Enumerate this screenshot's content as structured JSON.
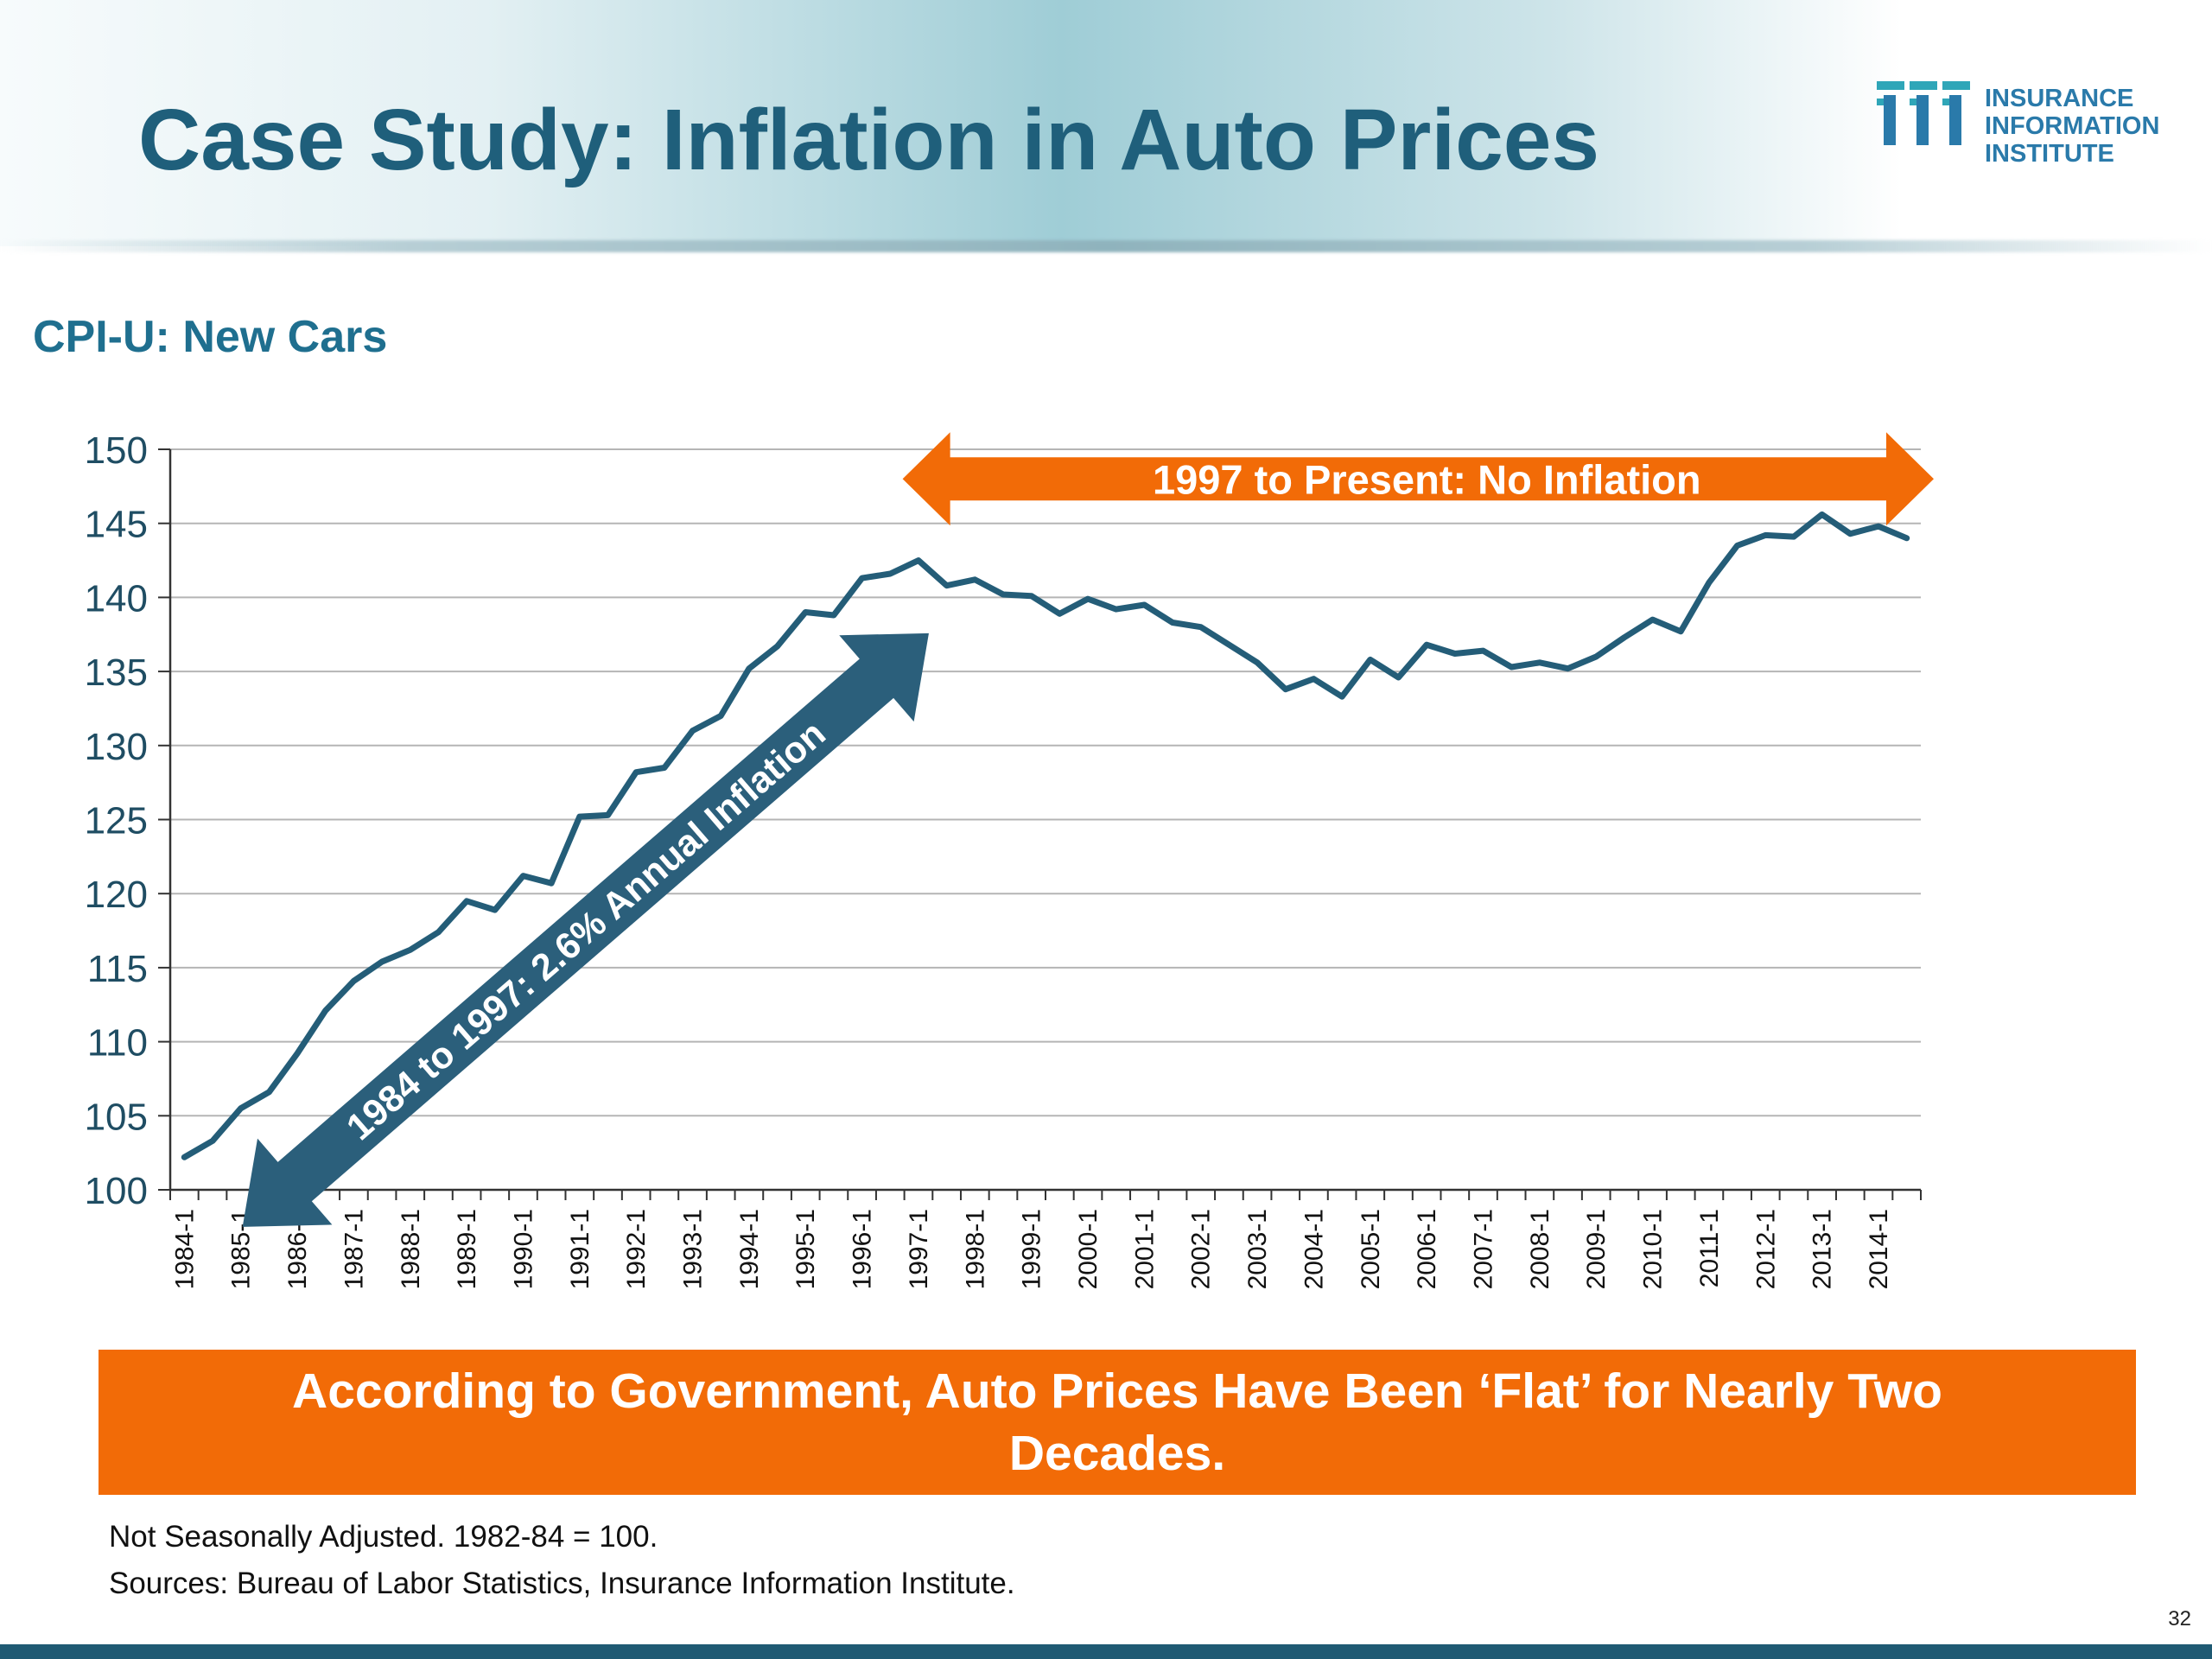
{
  "slide": {
    "title": "Case Study: Inflation in Auto Prices",
    "page_number": "32"
  },
  "logo": {
    "line1": "INSURANCE",
    "line2": "INFORMATION",
    "line3": "INSTITUTE",
    "colors": {
      "teal": "#2fa6b8",
      "blue": "#2a7aaa"
    }
  },
  "callout": {
    "line1": "According to Government, Auto Prices Have Been ‘Flat’ for Nearly Two",
    "line2": "Decades."
  },
  "footnotes": [
    "Not Seasonally Adjusted. 1982-84 = 100.",
    "Sources: Bureau of Labor Statistics, Insurance Information Institute."
  ],
  "colors": {
    "title": "#1f5f7b",
    "line": "#245d78",
    "orange": "#f26b07",
    "dark_arrow": "#2b5f7b"
  },
  "chart_data": {
    "type": "line",
    "title": "CPI-U: New Cars",
    "xlabel": "",
    "ylabel": "",
    "ylim": [
      100,
      150
    ],
    "yticks": [
      100,
      105,
      110,
      115,
      120,
      125,
      130,
      135,
      140,
      145,
      150
    ],
    "grid": true,
    "x_tick_labels": [
      "1984-1",
      "1985-1",
      "1986-1",
      "1987-1",
      "1988-1",
      "1989-1",
      "1990-1",
      "1991-1",
      "1992-1",
      "1993-1",
      "1994-1",
      "1995-1",
      "1996-1",
      "1997-1",
      "1998-1",
      "1999-1",
      "2000-1",
      "2001-1",
      "2002-1",
      "2003-1",
      "2004-1",
      "2005-1",
      "2006-1",
      "2007-1",
      "2008-1",
      "2009-1",
      "2010-1",
      "2011-1",
      "2012-1",
      "2013-1",
      "2014-1"
    ],
    "x": [
      "1984-1",
      "1984-2",
      "1985-1",
      "1985-2",
      "1986-1",
      "1986-2",
      "1987-1",
      "1987-2",
      "1988-1",
      "1988-2",
      "1989-1",
      "1989-2",
      "1990-1",
      "1990-2",
      "1991-1",
      "1991-2",
      "1992-1",
      "1992-2",
      "1993-1",
      "1993-2",
      "1994-1",
      "1994-2",
      "1995-1",
      "1995-2",
      "1996-1",
      "1996-2",
      "1997-1",
      "1997-2",
      "1998-1",
      "1998-2",
      "1999-1",
      "1999-2",
      "2000-1",
      "2000-2",
      "2001-1",
      "2001-2",
      "2002-1",
      "2002-2",
      "2003-1",
      "2003-2",
      "2004-1",
      "2004-2",
      "2005-1",
      "2005-2",
      "2006-1",
      "2006-2",
      "2007-1",
      "2007-2",
      "2008-1",
      "2008-2",
      "2009-1",
      "2009-2",
      "2010-1",
      "2010-2",
      "2011-1",
      "2011-2",
      "2012-1",
      "2012-2",
      "2013-1",
      "2013-2",
      "2014-1",
      "2014-2"
    ],
    "series": [
      {
        "values": [
          102.2,
          103.3,
          105.5,
          106.6,
          109.2,
          112.1,
          114.1,
          115.4,
          116.2,
          117.4,
          119.5,
          118.9,
          121.2,
          120.7,
          125.2,
          125.3,
          128.2,
          128.5,
          131.0,
          132.0,
          135.2,
          136.7,
          139.0,
          138.8,
          141.3,
          141.6,
          142.5,
          140.8,
          141.2,
          140.2,
          140.1,
          138.9,
          139.9,
          139.2,
          139.5,
          138.3,
          138.0,
          136.8,
          135.6,
          133.8,
          134.5,
          133.3,
          135.8,
          134.6,
          136.8,
          136.2,
          136.4,
          135.3,
          135.6,
          135.2,
          136.0,
          137.3,
          138.5,
          137.7,
          141.0,
          143.5,
          144.2,
          144.1,
          145.6,
          144.3,
          144.8,
          144.0
        ]
      }
    ],
    "annotations": [
      {
        "type": "double-arrow",
        "text": "1997 to Present: No Inflation",
        "from_x": "1997-1",
        "to_x": "2014-2",
        "y": 148
      },
      {
        "type": "double-arrow",
        "text": "1984 to 1997: 2.6% Annual Inflation",
        "from": [
          "1985-1",
          97.5
        ],
        "to": [
          "1997-1",
          137
        ]
      }
    ]
  }
}
